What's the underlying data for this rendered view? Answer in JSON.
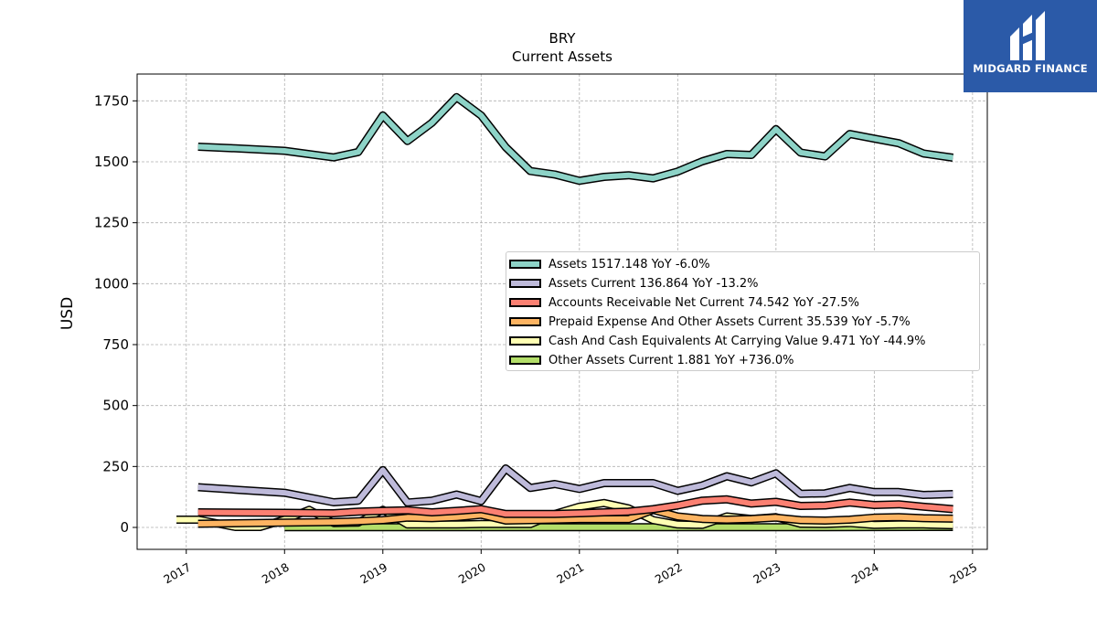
{
  "header": {
    "ticker": "BRY",
    "subtitle": "Current  Assets"
  },
  "logo": {
    "text": "MIDGARD FINANCE",
    "color": "#2b5aa8"
  },
  "chart_data": {
    "type": "line",
    "title": "BRY",
    "subtitle": "Current  Assets",
    "xlabel": "",
    "ylabel": "USD",
    "ylim": [
      -90,
      1860
    ],
    "xlim": [
      2016.5,
      2025.15
    ],
    "yticks": [
      0,
      250,
      500,
      750,
      1000,
      1250,
      1500,
      1750
    ],
    "xticks": [
      2017,
      2018,
      2019,
      2020,
      2021,
      2022,
      2023,
      2024,
      2025
    ],
    "grid": true,
    "legend_position": "center-right",
    "series": [
      {
        "name": "Assets",
        "legend": "Assets  1517.148 YoY -6.0%",
        "color": "#8dd3c7",
        "x": [
          2017.12,
          2017.5,
          2018.0,
          2018.5,
          2018.75,
          2019.0,
          2019.25,
          2019.5,
          2019.75,
          2020.0,
          2020.25,
          2020.5,
          2020.75,
          2021.0,
          2021.25,
          2021.5,
          2021.75,
          2022.0,
          2022.25,
          2022.5,
          2022.75,
          2023.0,
          2023.25,
          2023.5,
          2023.75,
          2024.0,
          2024.25,
          2024.5,
          2024.8
        ],
        "values": [
          1562,
          1555,
          1545,
          1518,
          1540,
          1690,
          1585,
          1660,
          1765,
          1690,
          1560,
          1462,
          1448,
          1422,
          1438,
          1445,
          1432,
          1460,
          1502,
          1532,
          1528,
          1634,
          1538,
          1522,
          1614,
          1595,
          1576,
          1534,
          1517
        ]
      },
      {
        "name": "Assets Current",
        "legend": "Assets Current  136.864 YoY -13.2%",
        "color": "#bebada",
        "x": [
          2017.12,
          2017.5,
          2018.0,
          2018.5,
          2018.75,
          2019.0,
          2019.25,
          2019.5,
          2019.75,
          2020.0,
          2020.25,
          2020.5,
          2020.75,
          2021.0,
          2021.25,
          2021.5,
          2021.75,
          2022.0,
          2022.25,
          2022.5,
          2022.75,
          2023.0,
          2023.25,
          2023.5,
          2023.75,
          2024.0,
          2024.25,
          2024.5,
          2024.8
        ],
        "values": [
          165,
          155,
          142,
          103,
          110,
          235,
          102,
          110,
          135,
          108,
          242,
          162,
          178,
          158,
          182,
          182,
          182,
          150,
          172,
          210,
          185,
          222,
          138,
          140,
          162,
          145,
          145,
          133,
          137
        ]
      },
      {
        "name": "Accounts Receivable Net Current",
        "legend": "Accounts Receivable Net Current  74.542 YoY -27.5%",
        "color": "#fb8072",
        "x": [
          2017.12,
          2018.0,
          2018.5,
          2018.75,
          2019.0,
          2019.25,
          2019.5,
          2019.75,
          2020.0,
          2020.25,
          2020.5,
          2020.75,
          2021.0,
          2021.25,
          2021.5,
          2021.75,
          2022.0,
          2022.25,
          2022.5,
          2022.75,
          2023.0,
          2023.25,
          2023.5,
          2023.75,
          2024.0,
          2024.25,
          2024.5,
          2024.8
        ],
        "values": [
          62,
          60,
          58,
          65,
          68,
          70,
          62,
          68,
          75,
          55,
          55,
          55,
          58,
          62,
          65,
          75,
          90,
          110,
          115,
          98,
          105,
          88,
          90,
          102,
          92,
          95,
          85,
          75
        ]
      },
      {
        "name": "Prepaid Expense And Other Assets Current",
        "legend": "Prepaid Expense And Other Assets Current  35.539 YoY -5.7%",
        "color": "#fdb462",
        "x": [
          2017.12,
          2018.0,
          2018.5,
          2018.75,
          2019.0,
          2019.25,
          2019.5,
          2019.75,
          2020.0,
          2020.25,
          2020.5,
          2020.75,
          2021.0,
          2021.25,
          2021.5,
          2021.75,
          2022.0,
          2022.25,
          2022.5,
          2022.75,
          2023.0,
          2023.25,
          2023.5,
          2023.75,
          2024.0,
          2024.25,
          2024.5,
          2024.8
        ],
        "values": [
          15,
          20,
          22,
          25,
          30,
          40,
          38,
          42,
          52,
          28,
          30,
          32,
          34,
          34,
          34,
          72,
          45,
          35,
          32,
          35,
          40,
          30,
          28,
          32,
          40,
          42,
          38,
          36
        ]
      },
      {
        "name": "Cash And Cash Equivalents At Carrying Value",
        "legend": "Cash And Cash Equivalents At Carrying Value  9.471 YoY -44.9%",
        "color": "#ffffb3",
        "x": [
          2016.9,
          2017.12,
          2017.5,
          2017.75,
          2018.0,
          2018.25,
          2018.5,
          2018.75,
          2019.0,
          2019.25,
          2019.5,
          2019.75,
          2020.0,
          2020.25,
          2020.5,
          2020.75,
          2021.0,
          2021.25,
          2021.5,
          2021.75,
          2022.0,
          2022.25,
          2022.5,
          2022.75,
          2023.0,
          2023.25,
          2023.5,
          2023.75,
          2024.0,
          2024.25,
          2024.5,
          2024.8
        ],
        "values": [
          32,
          32,
          2,
          2,
          32,
          72,
          18,
          20,
          72,
          12,
          12,
          12,
          14,
          14,
          14,
          55,
          85,
          100,
          78,
          30,
          12,
          10,
          45,
          35,
          42,
          15,
          14,
          18,
          10,
          12,
          12,
          9
        ]
      },
      {
        "name": "Other Assets Current",
        "legend": "Other Assets Current  1.881 YoY +736.0%",
        "color": "#b3de69",
        "x": [
          2018.0,
          2018.5,
          2019.0,
          2019.5,
          2020.0,
          2020.5,
          2021.0,
          2021.5,
          2022.0,
          2022.5,
          2023.0,
          2023.5,
          2024.0,
          2024.5,
          2024.8
        ],
        "values": [
          1,
          1,
          1,
          1,
          1,
          1,
          1,
          1,
          1,
          1,
          1,
          1,
          1.5,
          1.8,
          1.9
        ]
      }
    ]
  }
}
